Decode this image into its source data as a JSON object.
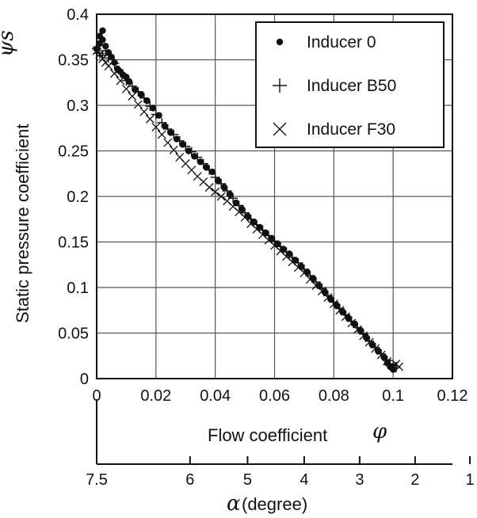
{
  "chart_data": {
    "type": "scatter",
    "title": "",
    "xlabel": "Flow coefficient",
    "xlabel_symbol": "φ",
    "ylabel": "Static pressure coefficient",
    "ylabel_symbol": "ψs",
    "xlim": [
      0,
      0.12
    ],
    "ylim": [
      0,
      0.4
    ],
    "x_ticks": [
      "0",
      "0.02",
      "0.04",
      "0.06",
      "0.08",
      "0.1",
      "0.12"
    ],
    "y_ticks": [
      "0",
      "0.05",
      "0.1",
      "0.15",
      "0.2",
      "0.25",
      "0.3",
      "0.35",
      "0.4"
    ],
    "grid": true,
    "legend_position": "top-right",
    "secondary_axis": {
      "label_symbol": "α",
      "label_text": "(degree)",
      "ticks": [
        {
          "label": "7.5",
          "phi": 0.0
        },
        {
          "label": "6",
          "phi": 0.0315
        },
        {
          "label": "5",
          "phi": 0.0509
        },
        {
          "label": "4",
          "phi": 0.07
        },
        {
          "label": "3",
          "phi": 0.0887
        },
        {
          "label": "2",
          "phi": 0.1074
        },
        {
          "label": "1",
          "phi": 0.1259
        }
      ]
    },
    "series": [
      {
        "name": "Inducer 0",
        "marker": "dot",
        "points": [
          [
            0.0,
            0.362
          ],
          [
            0.001,
            0.368
          ],
          [
            0.001,
            0.376
          ],
          [
            0.002,
            0.382
          ],
          [
            0.002,
            0.372
          ],
          [
            0.003,
            0.365
          ],
          [
            0.004,
            0.358
          ],
          [
            0.005,
            0.353
          ],
          [
            0.006,
            0.347
          ],
          [
            0.007,
            0.34
          ],
          [
            0.008,
            0.337
          ],
          [
            0.009,
            0.333
          ],
          [
            0.01,
            0.331
          ],
          [
            0.011,
            0.326
          ],
          [
            0.013,
            0.317
          ],
          [
            0.015,
            0.312
          ],
          [
            0.017,
            0.305
          ],
          [
            0.019,
            0.297
          ],
          [
            0.021,
            0.289
          ],
          [
            0.023,
            0.277
          ],
          [
            0.025,
            0.27
          ],
          [
            0.027,
            0.263
          ],
          [
            0.029,
            0.257
          ],
          [
            0.031,
            0.25
          ],
          [
            0.033,
            0.244
          ],
          [
            0.035,
            0.238
          ],
          [
            0.037,
            0.232
          ],
          [
            0.039,
            0.227
          ],
          [
            0.041,
            0.217
          ],
          [
            0.043,
            0.21
          ],
          [
            0.045,
            0.202
          ],
          [
            0.047,
            0.193
          ],
          [
            0.049,
            0.186
          ],
          [
            0.051,
            0.178
          ],
          [
            0.053,
            0.172
          ],
          [
            0.055,
            0.166
          ],
          [
            0.057,
            0.16
          ],
          [
            0.059,
            0.154
          ],
          [
            0.061,
            0.148
          ],
          [
            0.063,
            0.142
          ],
          [
            0.065,
            0.137
          ],
          [
            0.067,
            0.13
          ],
          [
            0.069,
            0.123
          ],
          [
            0.071,
            0.117
          ],
          [
            0.073,
            0.11
          ],
          [
            0.075,
            0.102
          ],
          [
            0.077,
            0.095
          ],
          [
            0.079,
            0.087
          ],
          [
            0.081,
            0.08
          ],
          [
            0.083,
            0.073
          ],
          [
            0.085,
            0.066
          ],
          [
            0.087,
            0.06
          ],
          [
            0.089,
            0.053
          ],
          [
            0.091,
            0.045
          ],
          [
            0.093,
            0.037
          ],
          [
            0.095,
            0.03
          ],
          [
            0.097,
            0.023
          ],
          [
            0.098,
            0.017
          ],
          [
            0.099,
            0.013
          ],
          [
            0.1,
            0.01
          ]
        ]
      },
      {
        "name": "Inducer B50",
        "marker": "plus",
        "points": [
          [
            0.0,
            0.362
          ],
          [
            0.001,
            0.357
          ],
          [
            0.002,
            0.355
          ],
          [
            0.003,
            0.36
          ],
          [
            0.004,
            0.352
          ],
          [
            0.006,
            0.346
          ],
          [
            0.008,
            0.336
          ],
          [
            0.01,
            0.327
          ],
          [
            0.012,
            0.321
          ],
          [
            0.014,
            0.315
          ],
          [
            0.016,
            0.308
          ],
          [
            0.018,
            0.299
          ],
          [
            0.02,
            0.29
          ],
          [
            0.022,
            0.281
          ],
          [
            0.024,
            0.274
          ],
          [
            0.026,
            0.268
          ],
          [
            0.028,
            0.261
          ],
          [
            0.03,
            0.255
          ],
          [
            0.032,
            0.249
          ],
          [
            0.034,
            0.243
          ],
          [
            0.036,
            0.236
          ],
          [
            0.038,
            0.229
          ],
          [
            0.04,
            0.221
          ],
          [
            0.042,
            0.214
          ],
          [
            0.044,
            0.206
          ],
          [
            0.046,
            0.198
          ],
          [
            0.048,
            0.19
          ],
          [
            0.05,
            0.182
          ],
          [
            0.052,
            0.175
          ],
          [
            0.054,
            0.169
          ],
          [
            0.056,
            0.163
          ],
          [
            0.058,
            0.157
          ],
          [
            0.06,
            0.151
          ],
          [
            0.062,
            0.145
          ],
          [
            0.064,
            0.139
          ],
          [
            0.066,
            0.133
          ],
          [
            0.068,
            0.127
          ],
          [
            0.07,
            0.12
          ],
          [
            0.072,
            0.113
          ],
          [
            0.074,
            0.106
          ],
          [
            0.076,
            0.099
          ],
          [
            0.078,
            0.091
          ],
          [
            0.08,
            0.084
          ],
          [
            0.082,
            0.077
          ],
          [
            0.084,
            0.07
          ],
          [
            0.086,
            0.063
          ],
          [
            0.088,
            0.056
          ],
          [
            0.09,
            0.049
          ],
          [
            0.092,
            0.041
          ],
          [
            0.094,
            0.034
          ],
          [
            0.096,
            0.027
          ],
          [
            0.098,
            0.02
          ],
          [
            0.099,
            0.016
          ],
          [
            0.1,
            0.014
          ],
          [
            0.101,
            0.012
          ]
        ]
      },
      {
        "name": "Inducer F30",
        "marker": "cross",
        "points": [
          [
            0.0,
            0.36
          ],
          [
            0.001,
            0.356
          ],
          [
            0.002,
            0.351
          ],
          [
            0.003,
            0.347
          ],
          [
            0.004,
            0.343
          ],
          [
            0.006,
            0.335
          ],
          [
            0.008,
            0.327
          ],
          [
            0.01,
            0.318
          ],
          [
            0.012,
            0.31
          ],
          [
            0.014,
            0.301
          ],
          [
            0.016,
            0.293
          ],
          [
            0.018,
            0.285
          ],
          [
            0.02,
            0.276
          ],
          [
            0.022,
            0.268
          ],
          [
            0.024,
            0.259
          ],
          [
            0.026,
            0.251
          ],
          [
            0.028,
            0.243
          ],
          [
            0.03,
            0.236
          ],
          [
            0.032,
            0.229
          ],
          [
            0.034,
            0.222
          ],
          [
            0.036,
            0.216
          ],
          [
            0.038,
            0.21
          ],
          [
            0.04,
            0.205
          ],
          [
            0.042,
            0.2
          ],
          [
            0.044,
            0.195
          ],
          [
            0.046,
            0.189
          ],
          [
            0.048,
            0.183
          ],
          [
            0.05,
            0.177
          ],
          [
            0.052,
            0.17
          ],
          [
            0.054,
            0.164
          ],
          [
            0.056,
            0.158
          ],
          [
            0.058,
            0.152
          ],
          [
            0.06,
            0.146
          ],
          [
            0.062,
            0.14
          ],
          [
            0.064,
            0.134
          ],
          [
            0.066,
            0.128
          ],
          [
            0.068,
            0.122
          ],
          [
            0.07,
            0.116
          ],
          [
            0.072,
            0.109
          ],
          [
            0.074,
            0.102
          ],
          [
            0.076,
            0.096
          ],
          [
            0.078,
            0.089
          ],
          [
            0.08,
            0.082
          ],
          [
            0.082,
            0.075
          ],
          [
            0.084,
            0.068
          ],
          [
            0.086,
            0.061
          ],
          [
            0.088,
            0.054
          ],
          [
            0.09,
            0.047
          ],
          [
            0.092,
            0.04
          ],
          [
            0.094,
            0.033
          ],
          [
            0.096,
            0.026
          ],
          [
            0.098,
            0.019
          ],
          [
            0.1,
            0.014
          ],
          [
            0.101,
            0.016
          ],
          [
            0.102,
            0.013
          ]
        ]
      }
    ]
  }
}
